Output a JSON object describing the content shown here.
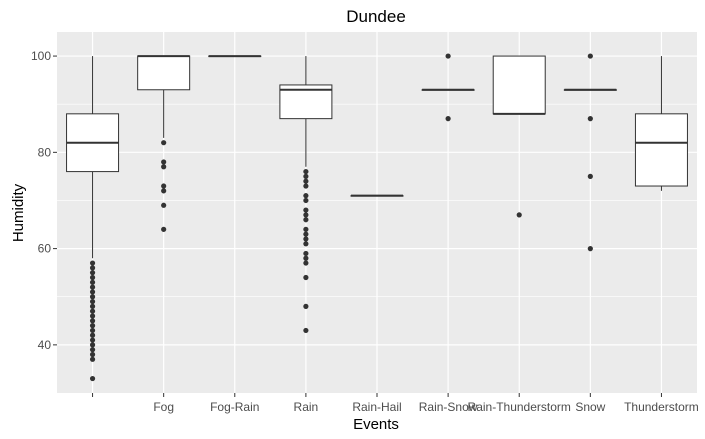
{
  "chart_data": {
    "type": "boxplot",
    "title": "Dundee",
    "xlabel": "Events",
    "ylabel": "Humidity",
    "ylim": [
      30,
      105
    ],
    "yticks": [
      40,
      60,
      80,
      100
    ],
    "grid": true,
    "categories": [
      "",
      "Fog",
      "Fog-Rain",
      "Rain",
      "Rain-Hail",
      "Rain-Snow",
      "Rain-Thunderstorm",
      "Snow",
      "Thunderstorm"
    ],
    "boxes": [
      {
        "category": "",
        "whisker_low": 58,
        "q1": 76,
        "median": 82,
        "q3": 88,
        "whisker_high": 100,
        "outliers": [
          57,
          56,
          55,
          54,
          53,
          52,
          51,
          50,
          49,
          48,
          47,
          46,
          45,
          44,
          43,
          42,
          41,
          40,
          39,
          38,
          37,
          33
        ]
      },
      {
        "category": "Fog",
        "whisker_low": 83,
        "q1": 93,
        "median": 100,
        "q3": 100,
        "whisker_high": 100,
        "outliers": [
          82,
          78,
          77,
          73,
          72,
          69,
          64
        ]
      },
      {
        "category": "Fog-Rain",
        "whisker_low": 100,
        "q1": 100,
        "median": 100,
        "q3": 100,
        "whisker_high": 100,
        "outliers": []
      },
      {
        "category": "Rain",
        "whisker_low": 77,
        "q1": 87,
        "median": 93,
        "q3": 94,
        "whisker_high": 100,
        "outliers": [
          76,
          75,
          74,
          73,
          71,
          70,
          68,
          67,
          66,
          64,
          63,
          62,
          61,
          59,
          58,
          57,
          54,
          48,
          43
        ]
      },
      {
        "category": "Rain-Hail",
        "whisker_low": 71,
        "q1": 71,
        "median": 71,
        "q3": 71,
        "whisker_high": 71,
        "outliers": []
      },
      {
        "category": "Rain-Snow",
        "whisker_low": 93,
        "q1": 93,
        "median": 93,
        "q3": 93,
        "whisker_high": 93,
        "outliers": [
          100,
          87
        ]
      },
      {
        "category": "Rain-Thunderstorm",
        "whisker_low": 88,
        "q1": 88,
        "median": 88,
        "q3": 100,
        "whisker_high": 100,
        "outliers": [
          67
        ]
      },
      {
        "category": "Snow",
        "whisker_low": 93,
        "q1": 93,
        "median": 93,
        "q3": 93,
        "whisker_high": 93,
        "outliers": [
          100,
          87,
          75,
          60
        ]
      },
      {
        "category": "Thunderstorm",
        "whisker_low": 72,
        "q1": 73,
        "median": 82,
        "q3": 88,
        "whisker_high": 100,
        "outliers": []
      }
    ],
    "colors": {
      "panel_background": "#ebebeb",
      "gridline": "#ffffff",
      "box_fill": "#ffffff",
      "box_stroke": "#333333",
      "outlier": "#333333",
      "tick_label": "#4d4d4d"
    }
  }
}
